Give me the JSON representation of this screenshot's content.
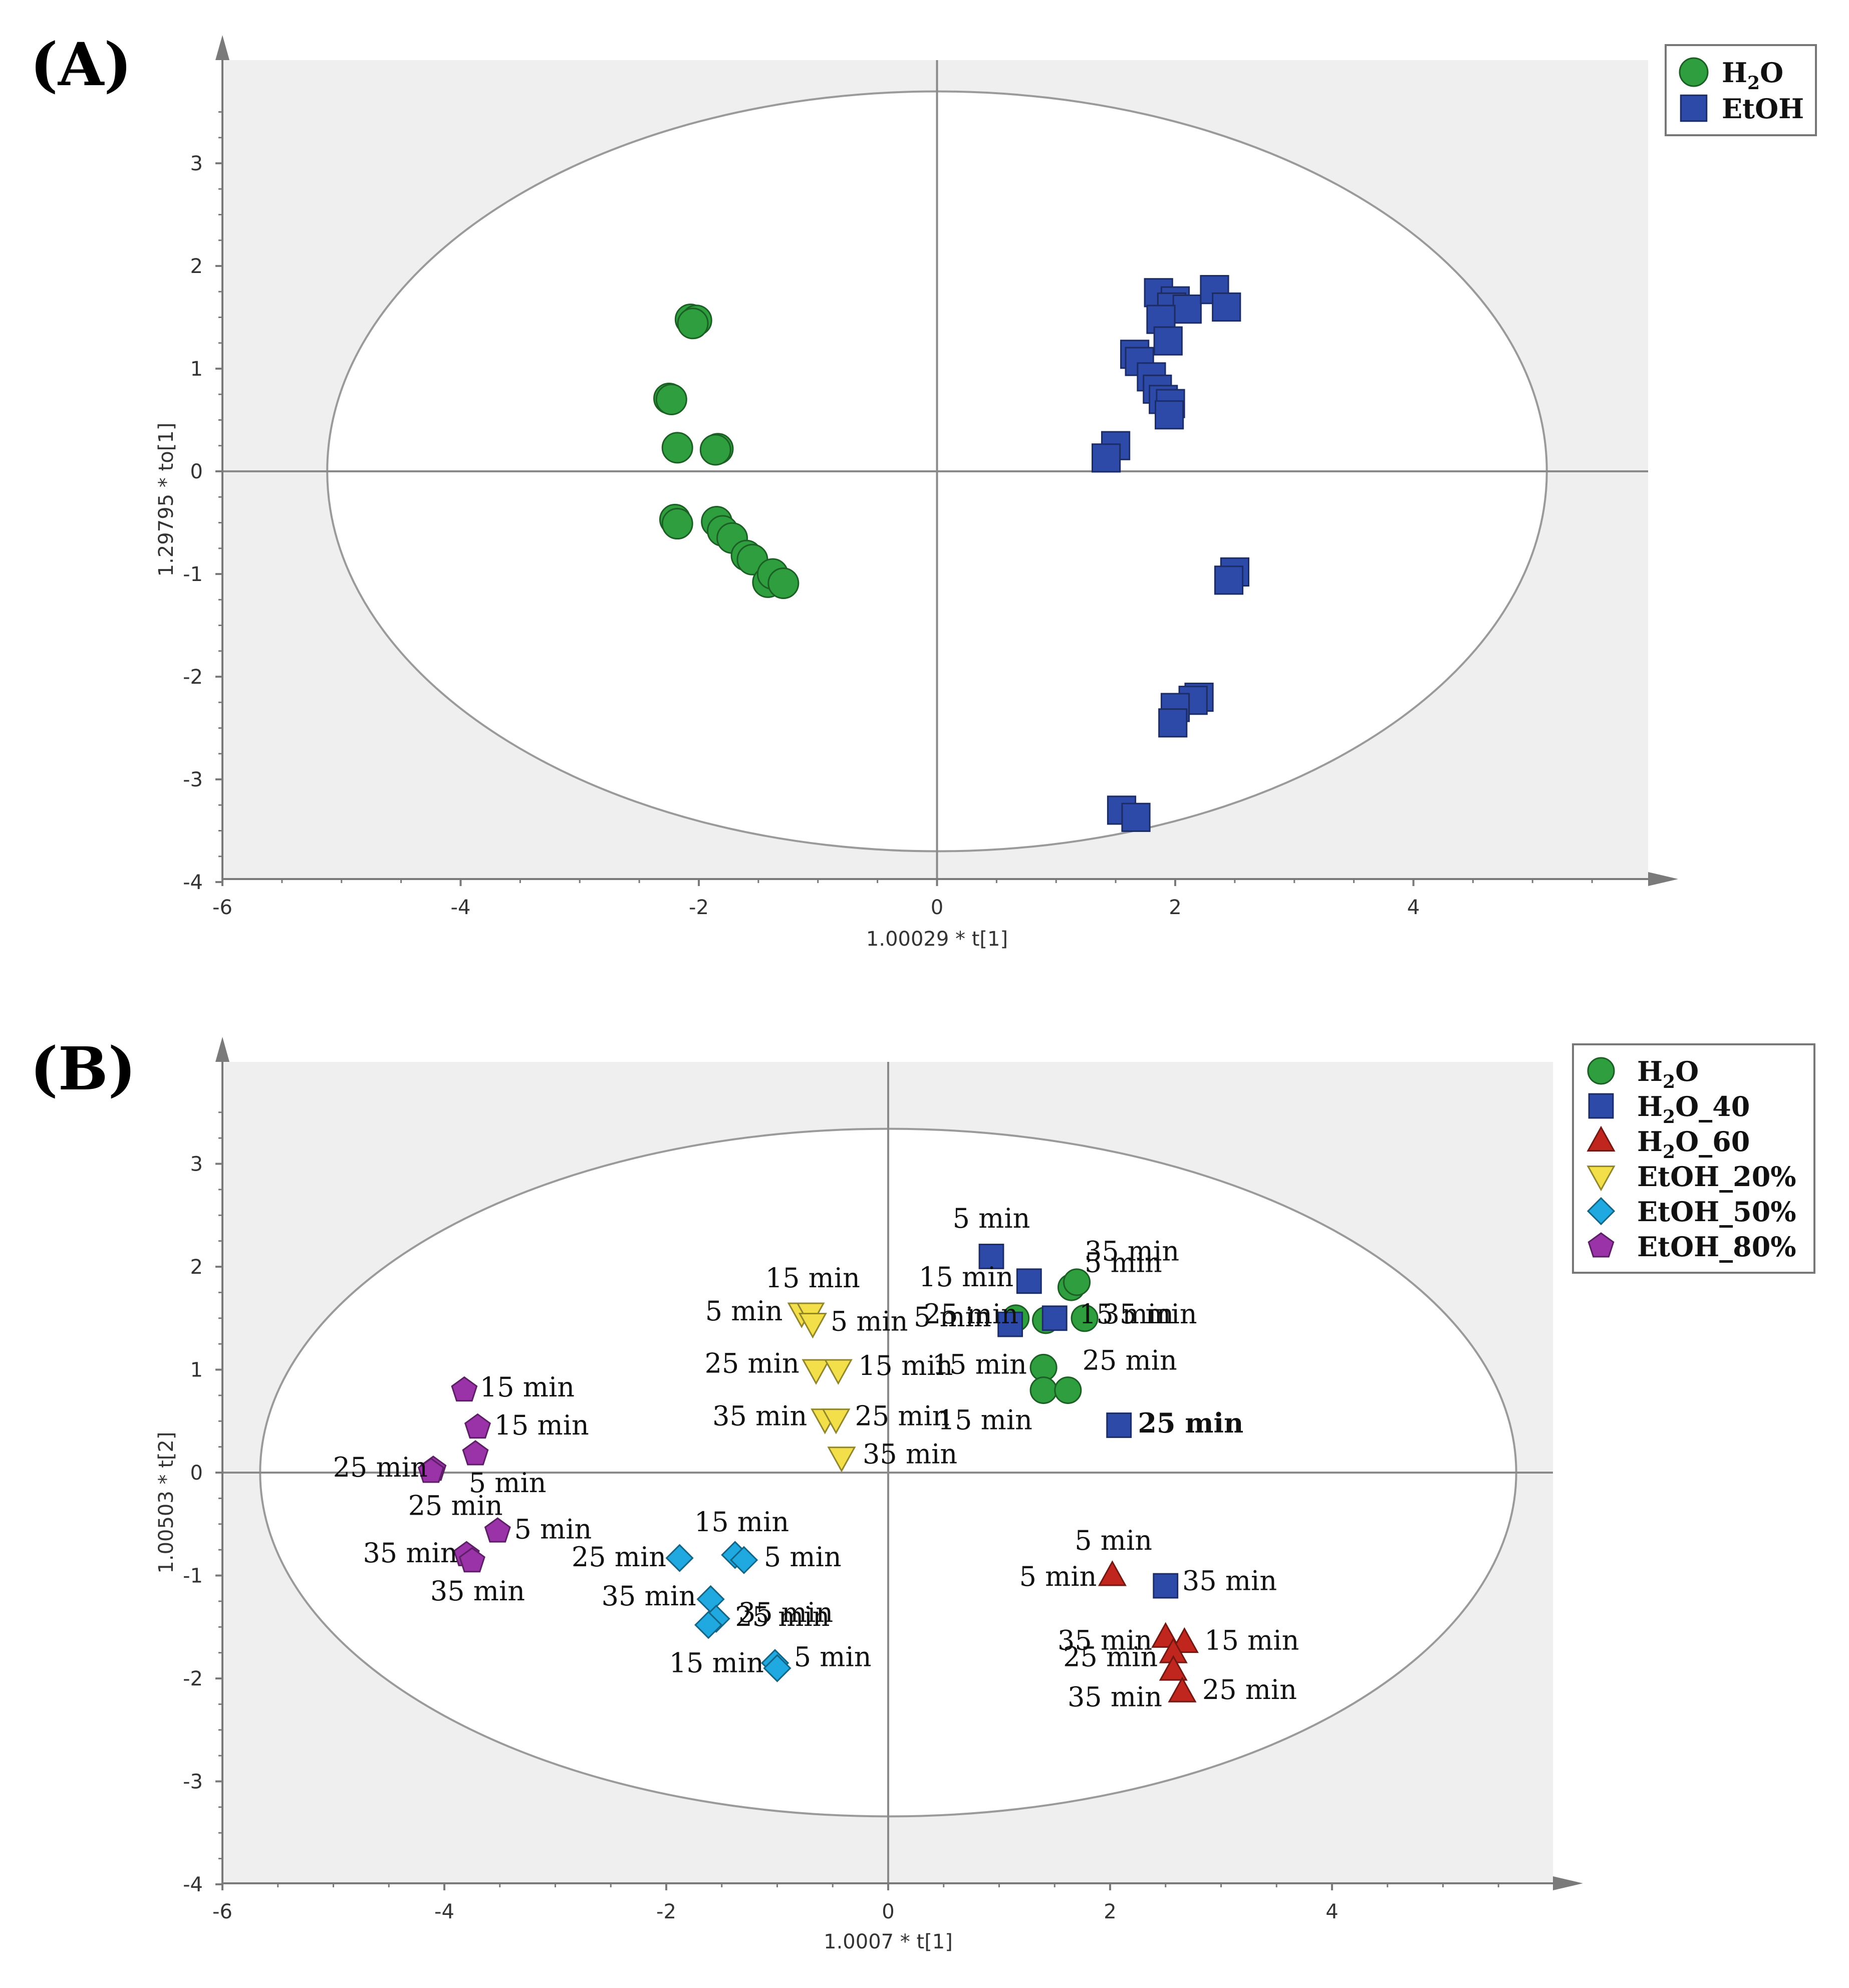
{
  "chart_data": [
    {
      "panel_label": "(A)",
      "type": "scatter",
      "xlabel": "1.00029 * t[1]",
      "ylabel": "1.29795 * to[1]",
      "xlim": [
        -6,
        6.1
      ],
      "ylim": [
        -4,
        3.95
      ],
      "xticks": [
        "-6",
        "-4",
        "-2",
        "0",
        "2",
        "4"
      ],
      "yticks": [
        "3",
        "2",
        "1",
        "0",
        "-1",
        "-2",
        "-3",
        "-4"
      ],
      "ellipse": {
        "rx": 5.12,
        "ry": 3.7
      },
      "legend": [
        {
          "sub": true,
          "pre": "H",
          "sub_text": "2",
          "post": "O",
          "symbol": "circle",
          "color": "#2e9e3e"
        },
        {
          "sub": false,
          "text": "EtOH",
          "symbol": "square",
          "color": "#2e4aa8"
        }
      ],
      "series": [
        {
          "name": "H2O",
          "symbol": "circle",
          "color": "#2e9e3e",
          "points": [
            [
              -2.07,
              1.48
            ],
            [
              -2.02,
              1.47
            ],
            [
              -2.05,
              1.44
            ],
            [
              -2.25,
              0.71
            ],
            [
              -2.23,
              0.7
            ],
            [
              -2.18,
              0.23
            ],
            [
              -1.84,
              0.22
            ],
            [
              -1.86,
              0.21
            ],
            [
              -2.2,
              -0.47
            ],
            [
              -2.18,
              -0.51
            ],
            [
              -1.85,
              -0.49
            ],
            [
              -1.8,
              -0.58
            ],
            [
              -1.72,
              -0.65
            ],
            [
              -1.6,
              -0.82
            ],
            [
              -1.55,
              -0.86
            ],
            [
              -1.42,
              -1.08
            ],
            [
              -1.38,
              -1.0
            ],
            [
              -1.29,
              -1.09
            ]
          ]
        },
        {
          "name": "EtOH",
          "symbol": "square",
          "color": "#2e4aa8",
          "points": [
            [
              1.86,
              1.74
            ],
            [
              2.0,
              1.66
            ],
            [
              1.97,
              1.6
            ],
            [
              2.1,
              1.58
            ],
            [
              2.33,
              1.77
            ],
            [
              2.43,
              1.6
            ],
            [
              1.88,
              1.48
            ],
            [
              1.94,
              1.27
            ],
            [
              1.66,
              1.14
            ],
            [
              1.7,
              1.07
            ],
            [
              1.8,
              0.92
            ],
            [
              1.85,
              0.8
            ],
            [
              1.9,
              0.7
            ],
            [
              1.96,
              0.66
            ],
            [
              1.95,
              0.55
            ],
            [
              1.5,
              0.25
            ],
            [
              1.42,
              0.13
            ],
            [
              2.5,
              -0.98
            ],
            [
              2.45,
              -1.06
            ],
            [
              2.2,
              -2.2
            ],
            [
              2.15,
              -2.23
            ],
            [
              2.0,
              -2.3
            ],
            [
              1.98,
              -2.45
            ],
            [
              1.55,
              -3.3
            ],
            [
              1.67,
              -3.37
            ]
          ]
        }
      ]
    },
    {
      "panel_label": "(B)",
      "type": "scatter",
      "xlabel": "1.0007 * t[1]",
      "ylabel": "1.00503 * t[2]",
      "xlim": [
        -6,
        6
      ],
      "ylim": [
        -4,
        3.95
      ],
      "xticks": [
        "-6",
        "-4",
        "-2",
        "0",
        "2",
        "4"
      ],
      "yticks": [
        "3",
        "2",
        "1",
        "0",
        "-1",
        "-2",
        "-3",
        "-4"
      ],
      "ellipse": {
        "rx": 5.66,
        "ry": 3.34
      },
      "legend": [
        {
          "pre": "H",
          "sub_text": "2",
          "post": "O",
          "symbol": "circle",
          "color": "#2e9e3e"
        },
        {
          "pre": "H",
          "sub_text": "2",
          "post": "O_40",
          "symbol": "square",
          "color": "#2e4aa8"
        },
        {
          "pre": "H",
          "sub_text": "2",
          "post": "O_60",
          "symbol": "triangle",
          "color": "#c0261e"
        },
        {
          "pre": "EtOH_20%",
          "sub_text": "",
          "post": "",
          "symbol": "triangle-down",
          "color": "#f2df4a"
        },
        {
          "pre": "EtOH_50%",
          "sub_text": "",
          "post": "",
          "symbol": "diamond",
          "color": "#20a8e0"
        },
        {
          "pre": "EtOH_80%",
          "sub_text": "",
          "post": "",
          "symbol": "pentagon",
          "color": "#9a32a8"
        }
      ],
      "series": [
        {
          "name": "H2O",
          "symbol": "circle",
          "color": "#2e9e3e",
          "points": [
            [
              1.65,
              1.8
            ],
            [
              1.7,
              1.85
            ],
            [
              1.15,
              1.5
            ],
            [
              1.42,
              1.48
            ],
            [
              1.77,
              1.5
            ],
            [
              1.4,
              1.02
            ],
            [
              1.4,
              0.8
            ],
            [
              1.62,
              0.8
            ]
          ]
        },
        {
          "name": "H2O_40",
          "symbol": "square",
          "color": "#2e4aa8",
          "points": [
            [
              0.93,
              2.1
            ],
            [
              1.27,
              1.86
            ],
            [
              1.1,
              1.44
            ],
            [
              1.5,
              1.5
            ],
            [
              2.08,
              0.46
            ],
            [
              2.5,
              -1.1
            ]
          ]
        },
        {
          "name": "H2O_60",
          "symbol": "triangle",
          "color": "#c0261e",
          "points": [
            [
              2.02,
              -1.0
            ],
            [
              2.5,
              -1.6
            ],
            [
              2.67,
              -1.65
            ],
            [
              2.57,
              -1.75
            ],
            [
              2.57,
              -1.92
            ],
            [
              2.65,
              -2.13
            ]
          ]
        },
        {
          "name": "EtOH_20%",
          "symbol": "triangle-down",
          "color": "#f2df4a",
          "points": [
            [
              -0.78,
              1.55
            ],
            [
              -0.7,
              1.55
            ],
            [
              -0.68,
              1.45
            ],
            [
              -0.65,
              1.0
            ],
            [
              -0.45,
              1.0
            ],
            [
              -0.57,
              0.52
            ],
            [
              -0.47,
              0.52
            ],
            [
              -0.42,
              0.15
            ]
          ]
        },
        {
          "name": "EtOH_50%",
          "symbol": "diamond",
          "color": "#20a8e0",
          "points": [
            [
              -1.38,
              -0.8
            ],
            [
              -1.3,
              -0.85
            ],
            [
              -1.88,
              -0.83
            ],
            [
              -1.6,
              -1.23
            ],
            [
              -1.55,
              -1.42
            ],
            [
              -1.62,
              -1.48
            ],
            [
              -1.02,
              -1.85
            ],
            [
              -1.0,
              -1.9
            ]
          ]
        },
        {
          "name": "EtOH_80%",
          "symbol": "pentagon",
          "color": "#9a32a8",
          "points": [
            [
              -3.82,
              0.8
            ],
            [
              -3.7,
              0.44
            ],
            [
              -3.72,
              0.18
            ],
            [
              -4.1,
              0.03
            ],
            [
              -4.12,
              0.01
            ],
            [
              -3.52,
              -0.57
            ],
            [
              -3.8,
              -0.8
            ],
            [
              -3.75,
              -0.86
            ]
          ]
        }
      ],
      "annotations": [
        {
          "text": "5 min",
          "x": 0.93,
          "y": 2.38,
          "anchor": "middle"
        },
        {
          "text": "35 min",
          "x": 1.77,
          "y": 2.06,
          "anchor": "start"
        },
        {
          "text": "5 min",
          "x": 1.77,
          "y": 1.95,
          "anchor": "start"
        },
        {
          "text": "15 min",
          "x": 1.13,
          "y": 1.81,
          "anchor": "end"
        },
        {
          "text": "25 min",
          "x": 0.32,
          "y": 1.45,
          "anchor": "start"
        },
        {
          "text": "5 min",
          "x": 0.23,
          "y": 1.42,
          "anchor": "start"
        },
        {
          "text": "15 min",
          "x": 1.72,
          "y": 1.45,
          "anchor": "start"
        },
        {
          "text": "35 min",
          "x": 1.93,
          "y": 1.45,
          "anchor": "start"
        },
        {
          "text": "15 min",
          "x": 1.25,
          "y": 0.96,
          "anchor": "end"
        },
        {
          "text": "25 min",
          "x": 1.75,
          "y": 1.0,
          "anchor": "start"
        },
        {
          "text": "15 min",
          "x": 1.3,
          "y": 0.42,
          "anchor": "end"
        },
        {
          "text": "25 min",
          "x": 2.25,
          "y": 0.39,
          "anchor": "start",
          "bold": true
        },
        {
          "text": "15 min",
          "x": -0.68,
          "y": 1.8,
          "anchor": "middle"
        },
        {
          "text": "5 min",
          "x": -0.95,
          "y": 1.48,
          "anchor": "end"
        },
        {
          "text": "5 min",
          "x": -0.52,
          "y": 1.38,
          "anchor": "start"
        },
        {
          "text": "25 min",
          "x": -0.8,
          "y": 0.97,
          "anchor": "end"
        },
        {
          "text": "15 min",
          "x": -0.27,
          "y": 0.95,
          "anchor": "start"
        },
        {
          "text": "35 min",
          "x": -0.73,
          "y": 0.46,
          "anchor": "end"
        },
        {
          "text": "25 min",
          "x": -0.3,
          "y": 0.46,
          "anchor": "start"
        },
        {
          "text": "35 min",
          "x": -0.23,
          "y": 0.09,
          "anchor": "start"
        },
        {
          "text": "15 min",
          "x": -3.68,
          "y": 0.74,
          "anchor": "start"
        },
        {
          "text": "15 min",
          "x": -3.55,
          "y": 0.37,
          "anchor": "start"
        },
        {
          "text": "25 min",
          "x": -4.15,
          "y": -0.04,
          "anchor": "end"
        },
        {
          "text": "5 min",
          "x": -3.78,
          "y": -0.19,
          "anchor": "start"
        },
        {
          "text": "25 min",
          "x": -3.9,
          "y": -0.41,
          "anchor": "middle"
        },
        {
          "text": "5 min",
          "x": -3.37,
          "y": -0.64,
          "anchor": "start"
        },
        {
          "text": "35 min",
          "x": -3.88,
          "y": -0.87,
          "anchor": "end"
        },
        {
          "text": "35 min",
          "x": -3.7,
          "y": -1.24,
          "anchor": "middle"
        },
        {
          "text": "15 min",
          "x": -1.32,
          "y": -0.57,
          "anchor": "middle"
        },
        {
          "text": "25 min",
          "x": -2.0,
          "y": -0.91,
          "anchor": "end"
        },
        {
          "text": "5 min",
          "x": -1.12,
          "y": -0.91,
          "anchor": "start"
        },
        {
          "text": "35 min",
          "x": -1.73,
          "y": -1.29,
          "anchor": "end"
        },
        {
          "text": "35 min",
          "x": -1.35,
          "y": -1.45,
          "anchor": "start"
        },
        {
          "text": "25 min",
          "x": -1.38,
          "y": -1.49,
          "anchor": "start"
        },
        {
          "text": "15 min",
          "x": -1.12,
          "y": -1.94,
          "anchor": "end"
        },
        {
          "text": "5 min",
          "x": -0.85,
          "y": -1.88,
          "anchor": "start"
        },
        {
          "text": "5 min",
          "x": 2.03,
          "y": -0.75,
          "anchor": "middle"
        },
        {
          "text": "5 min",
          "x": 1.88,
          "y": -1.1,
          "anchor": "end"
        },
        {
          "text": "35 min",
          "x": 2.65,
          "y": -1.14,
          "anchor": "start"
        },
        {
          "text": "35 min",
          "x": 2.38,
          "y": -1.72,
          "anchor": "end"
        },
        {
          "text": "25 min",
          "x": 2.43,
          "y": -1.88,
          "anchor": "end"
        },
        {
          "text": "15 min",
          "x": 2.85,
          "y": -1.72,
          "anchor": "start"
        },
        {
          "text": "35 min",
          "x": 2.47,
          "y": -2.27,
          "anchor": "end"
        },
        {
          "text": "25 min",
          "x": 2.83,
          "y": -2.2,
          "anchor": "start"
        }
      ]
    }
  ]
}
